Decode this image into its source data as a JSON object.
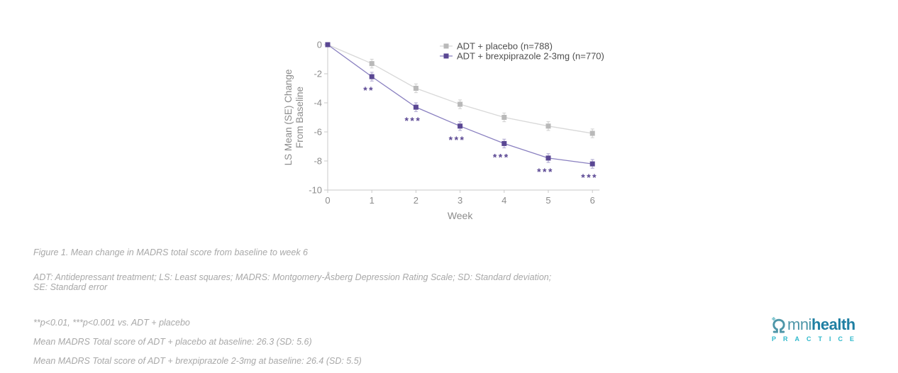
{
  "caption": "Figure 1. Mean change in MADRS total score from baseline to week 6",
  "abbreviations": "ADT: Antidepressant treatment; LS: Least squares; MADRS: Montgomery-Åsberg Depression Rating Scale; SD: Standard deviation;\nSE: Standard error",
  "footnotes": [
    "**p<0.01, ***p<0.001 vs. ADT + placebo",
    "Mean MADRS Total score of ADT + placebo at baseline: 26.3 (SD: 5.6)",
    "Mean MADRS Total score of ADT + brexpiprazole 2-3mg at baseline: 26.4 (SD: 5.5)"
  ],
  "chart_data": {
    "type": "line",
    "x": [
      0,
      1,
      2,
      3,
      4,
      5,
      6
    ],
    "xlabel": "Week",
    "ylabel_line1": "LS Mean (SE) Change",
    "ylabel_line2": "From Baseline",
    "ylim": [
      -10,
      0
    ],
    "yticks": [
      0,
      -2,
      -4,
      -6,
      -8,
      -10
    ],
    "grid": false,
    "legend_position": "top-right",
    "series": [
      {
        "name": "ADT + placebo (n=788)",
        "marker": "square",
        "marker_color": "#b9b9b9",
        "line_color": "#d8d8d8",
        "errorbar_color": "#cfcfcf",
        "values": [
          0,
          -1.3,
          -3.0,
          -4.1,
          -5.0,
          -5.6,
          -6.1
        ],
        "se": [
          0,
          0.3,
          0.3,
          0.3,
          0.3,
          0.3,
          0.3
        ]
      },
      {
        "name": "ADT + brexpiprazole 2-3mg (n=770)",
        "marker": "square",
        "marker_color": "#5a4793",
        "line_color": "#8a80c0",
        "errorbar_color": "#aaa3cd",
        "values": [
          0,
          -2.2,
          -4.3,
          -5.6,
          -6.8,
          -7.8,
          -8.2
        ],
        "se": [
          0,
          0.3,
          0.3,
          0.3,
          0.3,
          0.3,
          0.3
        ]
      }
    ],
    "annotations": [
      {
        "x": 1,
        "series": 1,
        "label": "**"
      },
      {
        "x": 2,
        "series": 1,
        "label": "***"
      },
      {
        "x": 3,
        "series": 1,
        "label": "***"
      },
      {
        "x": 4,
        "series": 1,
        "label": "***"
      },
      {
        "x": 5,
        "series": 1,
        "label": "***"
      },
      {
        "x": 6,
        "series": 1,
        "label": "***"
      }
    ],
    "annotation_color": "#5a4793",
    "axis_color": "#c9c9c9",
    "tick_text_color": "#8c8c8c",
    "axis_title_color": "#8c8c8c",
    "legend_text_color": "#4f4f4f"
  },
  "logo": {
    "brand_light": "mni",
    "brand_bold": "health",
    "subtitle": "PRACTICE",
    "colors": {
      "teal": "#4e96a8",
      "dark_teal": "#1f7fa3",
      "cyan": "#2fb9cc",
      "plus": "#7fc6cf"
    }
  }
}
